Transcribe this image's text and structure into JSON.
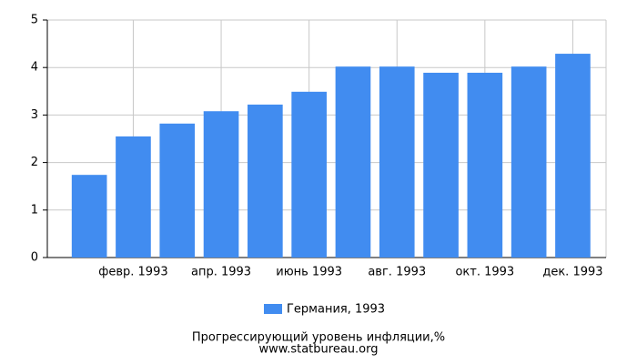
{
  "chart_data": {
    "type": "bar",
    "title": "Прогрессирующий уровень инфляции,%",
    "source": "www.statbureau.org",
    "categories": [
      null,
      "февр. 1993",
      null,
      "апр. 1993",
      null,
      "июнь 1993",
      null,
      "авг. 1993",
      null,
      "окт. 1993",
      null,
      "дек. 1993"
    ],
    "series": [
      {
        "name": "Германия, 1993",
        "color": "#418cf0",
        "values": [
          1.74,
          2.55,
          2.82,
          3.08,
          3.22,
          3.49,
          4.02,
          4.02,
          3.89,
          3.89,
          4.02,
          4.29
        ]
      }
    ],
    "ylim": [
      0,
      5
    ],
    "yticks": [
      0,
      1,
      2,
      3,
      4,
      5
    ],
    "grid": true
  }
}
